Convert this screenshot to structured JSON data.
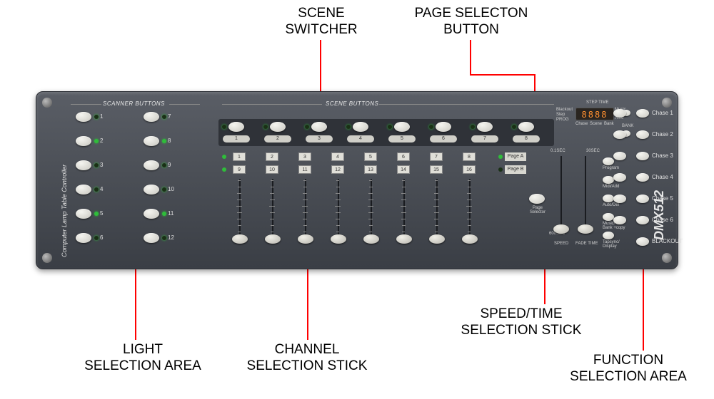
{
  "callouts": {
    "scene_switcher": "SCENE\nSWITCHER",
    "page_selection": "PAGE SELECTON\nBUTTON",
    "light_selection": "LIGHT\nSELECTION AREA",
    "channel_stick": "CHANNEL\nSELECTION STICK",
    "speed_time": "SPEED/TIME\nSELECTION STICK",
    "function_area": "FUNCTION\nSELECTION AREA"
  },
  "console": {
    "side_label": "Computer Lamp Table Controller",
    "brand": "DMX512",
    "scanner_title": "SCANNER  BUTTONS",
    "scene_title": "SCENE BUTTONS",
    "scanner_buttons": [
      1,
      2,
      3,
      4,
      5,
      6,
      7,
      8,
      9,
      10,
      11,
      12
    ],
    "scene_buttons": [
      1,
      2,
      3,
      4,
      5,
      6,
      7,
      8
    ],
    "channel_row1": [
      1,
      2,
      3,
      4,
      5,
      6,
      7,
      8
    ],
    "channel_row2": [
      9,
      10,
      11,
      12,
      13,
      14,
      15,
      16
    ],
    "page_a": "Page A",
    "page_b": "Page B",
    "page_selector_label": "Page\nSelector",
    "display_value": "8888",
    "display_title": "STEP TIME",
    "display_left_labels": [
      "Blackout",
      "Step",
      "PROG"
    ],
    "display_bottom_labels": [
      "Chase",
      "Scene",
      "Bank"
    ],
    "display_right_labels": [
      "Music",
      "Auto"
    ],
    "bank_label": "BANK",
    "speed_top": "0.1SEC",
    "speed_bottom": "600SEC",
    "fade_top": "30SEC",
    "speed_label": "SPEED",
    "fade_label": "FADE TIME",
    "right_labels": [
      "Program",
      "Midi/Add",
      "Auto/Del",
      "Music/\nBank +copy",
      "Tapsync/\nDisplay"
    ],
    "chase_labels": [
      "Chase 1",
      "Chase 2",
      "Chase 3",
      "Chase 4",
      "Chase 5",
      "Chase 6",
      "BLACKOUT"
    ]
  },
  "colors": {
    "callout_line": "#ff0000",
    "led_on": "#2fbd3a",
    "led_off": "#1a3016"
  }
}
